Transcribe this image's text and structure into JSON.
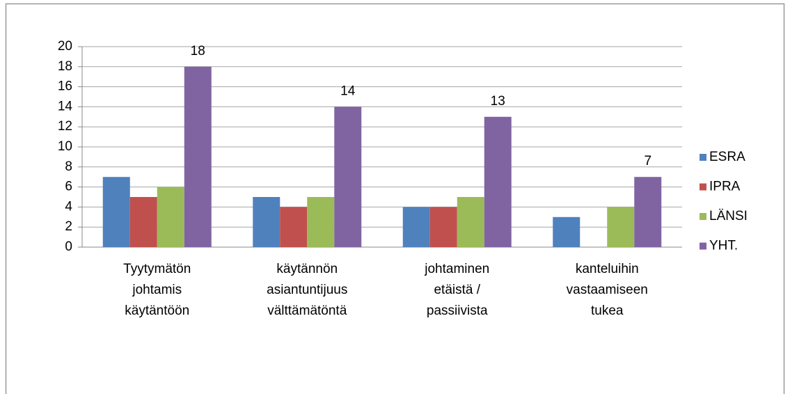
{
  "chart_data": {
    "type": "bar",
    "categories": [
      [
        "Tyytymätön",
        "johtamis",
        "käytäntöön"
      ],
      [
        "käytännön",
        "asiantuntijuus",
        "välttämätöntä"
      ],
      [
        "johtaminen",
        "etäistä /",
        "passiivista"
      ],
      [
        "kanteluihin",
        "vastaamiseen",
        "tukea"
      ]
    ],
    "series": [
      {
        "name": "ESRA",
        "color": "#4f81bd",
        "values": [
          7,
          5,
          4,
          3
        ]
      },
      {
        "name": "IPRA",
        "color": "#c0504d",
        "values": [
          5,
          4,
          4,
          0
        ]
      },
      {
        "name": "LÄNSI",
        "color": "#9bbb59",
        "values": [
          6,
          5,
          5,
          4
        ]
      },
      {
        "name": "YHT.",
        "color": "#8064a2",
        "values": [
          18,
          14,
          13,
          7
        ],
        "data_labels": true
      }
    ],
    "ylim": [
      0,
      20
    ],
    "yticks": [
      0,
      2,
      4,
      6,
      8,
      10,
      12,
      14,
      16,
      18,
      20
    ],
    "grid": true,
    "legend": "right"
  }
}
